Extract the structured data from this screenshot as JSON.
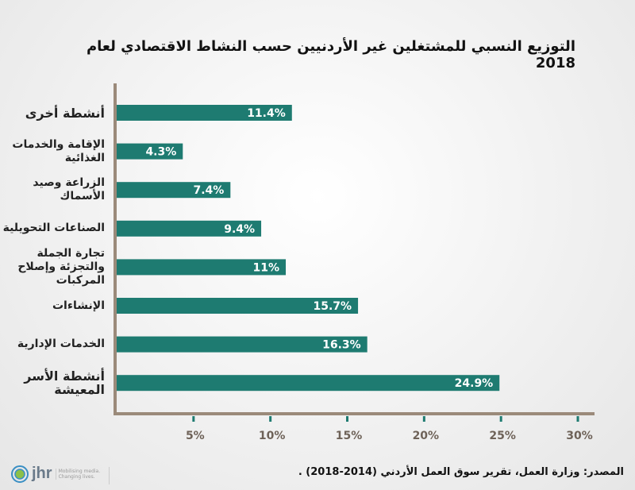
{
  "chart_data": {
    "type": "bar",
    "orientation": "horizontal",
    "title": "التوزيع النسبي للمشتغلين غير الأردنيين حسب النشاط الاقتصادي لعام 2018",
    "categories": [
      "أنشطة أخرى",
      "الإقامة والخدمات الغذائية",
      "الزراعة وصيد الأسماك",
      "الصناعات التحويلية",
      "تجارة الجملة والتجزئة وإصلاح المركبات",
      "الإنشاءات",
      "الخدمات الإدارية",
      "أنشطة الأسر المعيشة"
    ],
    "values": [
      11.4,
      4.3,
      7.4,
      9.4,
      11,
      15.7,
      16.3,
      24.9
    ],
    "value_labels": [
      "11.4%",
      "4.3%",
      "7.4%",
      "9.4%",
      "11%",
      "15.7%",
      "16.3%",
      "24.9%"
    ],
    "xlim": [
      0,
      30
    ],
    "xticks": [
      5,
      10,
      15,
      20,
      25,
      30
    ],
    "xtick_labels": [
      "5%",
      "10%",
      "15%",
      "20%",
      "25%",
      "30%"
    ],
    "xlabel": "",
    "ylabel": "",
    "grid": false,
    "legend": "none"
  },
  "colors": {
    "bar": "#1e7b71",
    "axis": "#9b8a7a",
    "tick": "#1e7b71",
    "tick_label": "#6e6258"
  },
  "source": "المصدر: وزارة العمل، تقرير سوق العمل الأردني (2014-2018) .",
  "logo": {
    "name": "jhr",
    "tagline1": "Mobilising media.",
    "tagline2": "Changing lives."
  }
}
